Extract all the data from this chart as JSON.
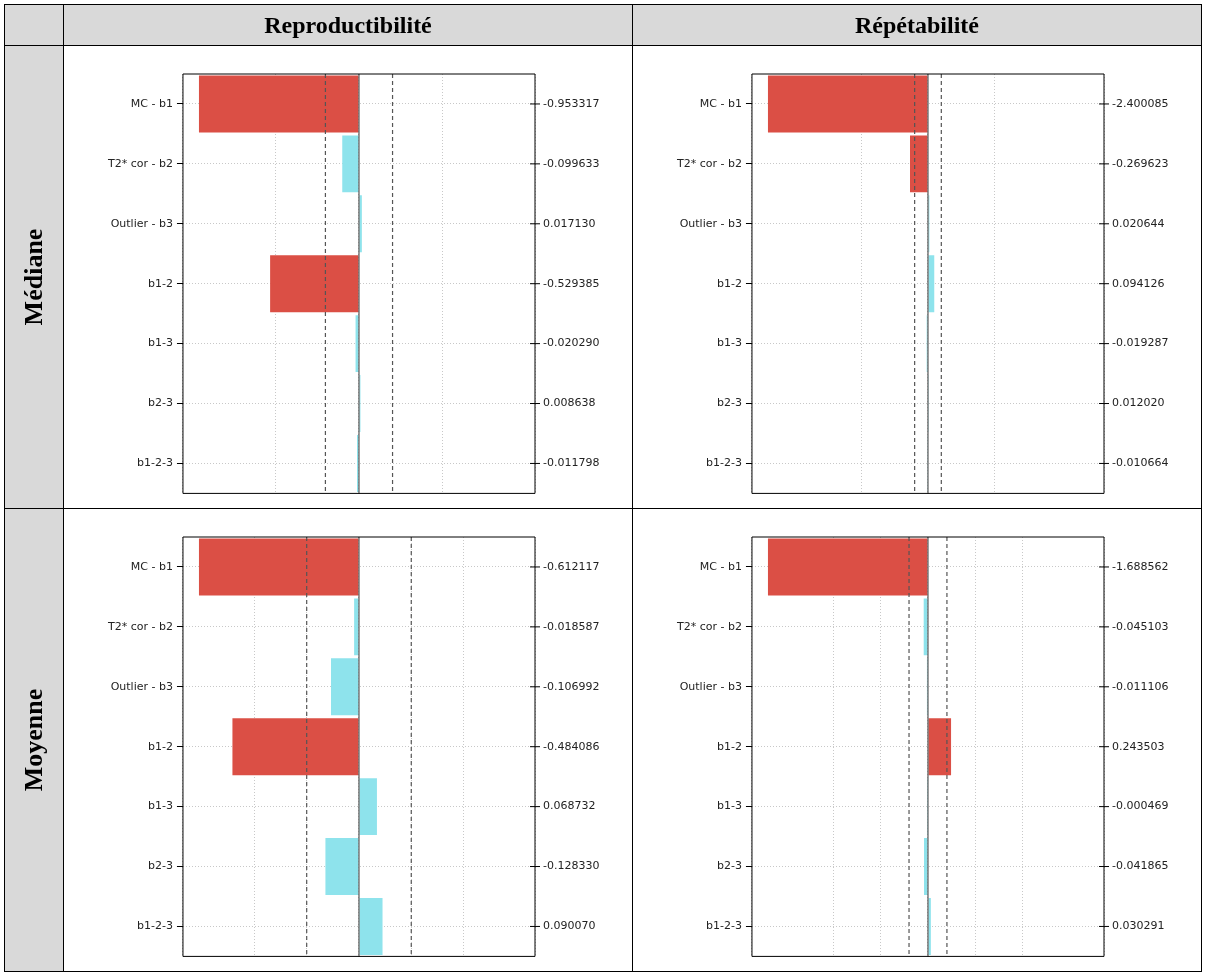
{
  "chart_data": [
    {
      "type": "bar",
      "orientation": "horizontal",
      "title": "Reproductibilité",
      "ylabel": "Médiane",
      "categories": [
        "MC - b1",
        "T2* cor - b2",
        "Outlier - b3",
        "b1-2",
        "b1-3",
        "b2-3",
        "b1-2-3"
      ],
      "values": [
        -0.953317,
        -0.099633,
        0.01713,
        -0.529385,
        -0.02029,
        0.008638,
        -0.011798
      ],
      "value_labels": [
        "-0.953317",
        "-0.099633",
        "0.017130",
        "-0.529385",
        "-0.020290",
        "0.008638",
        "-0.011798"
      ],
      "colors": [
        "#db4f45",
        "#8ee3ec",
        "#8ee3ec",
        "#db4f45",
        "#8ee3ec",
        "#8ee3ec",
        "#8ee3ec"
      ],
      "ref_lines": [
        {
          "axis": "x",
          "value": -0.2,
          "label": null,
          "line_style": "dashed",
          "color": "#555555"
        },
        {
          "axis": "x",
          "value": 0,
          "label": null,
          "line_style": "solid",
          "color": "#555555"
        },
        {
          "axis": "x",
          "value": 0.2,
          "label": null,
          "line_style": "dashed",
          "color": "#555555"
        }
      ],
      "grid": true,
      "tick_labels": "y",
      "legend": false
    },
    {
      "type": "bar",
      "orientation": "horizontal",
      "title": "Répétabilité",
      "categories": [
        "MC - b1",
        "T2* cor - b2",
        "Outlier - b3",
        "b1-2",
        "b1-3",
        "b2-3",
        "b1-2-3"
      ],
      "values": [
        -2.400085,
        -0.269623,
        0.020644,
        0.094126,
        -0.019287,
        0.01202,
        -0.010664
      ],
      "value_labels": [
        "-2.400085",
        "-0.269623",
        "0.020644",
        "0.094126",
        "-0.019287",
        "0.012020",
        "-0.010664"
      ],
      "colors": [
        "#db4f45",
        "#db4f45",
        "#8ee3ec",
        "#8ee3ec",
        "#8ee3ec",
        "#8ee3ec",
        "#8ee3ec"
      ],
      "ref_lines": [
        {
          "axis": "x",
          "value": -0.2,
          "label": null,
          "line_style": "dashed",
          "color": "#555555"
        },
        {
          "axis": "x",
          "value": 0,
          "label": null,
          "line_style": "solid",
          "color": "#555555"
        },
        {
          "axis": "x",
          "value": 0.2,
          "label": null,
          "line_style": "dashed",
          "color": "#555555"
        }
      ],
      "grid": true,
      "tick_labels": "y",
      "legend": false
    },
    {
      "type": "bar",
      "orientation": "horizontal",
      "ylabel": "Moyenne",
      "categories": [
        "MC - b1",
        "T2* cor - b2",
        "Outlier - b3",
        "b1-2",
        "b1-3",
        "b2-3",
        "b1-2-3"
      ],
      "values": [
        -0.612117,
        -0.018587,
        -0.106992,
        -0.484086,
        0.068732,
        -0.12833,
        0.09007
      ],
      "value_labels": [
        "-0.612117",
        "-0.018587",
        "-0.106992",
        "-0.484086",
        "0.068732",
        "-0.128330",
        "0.090070"
      ],
      "colors": [
        "#db4f45",
        "#8ee3ec",
        "#8ee3ec",
        "#db4f45",
        "#8ee3ec",
        "#8ee3ec",
        "#8ee3ec"
      ],
      "ref_lines": [
        {
          "axis": "x",
          "value": -0.2,
          "label": null,
          "line_style": "dashed",
          "color": "#555555"
        },
        {
          "axis": "x",
          "value": 0,
          "label": null,
          "line_style": "solid",
          "color": "#555555"
        },
        {
          "axis": "x",
          "value": 0.2,
          "label": null,
          "line_style": "dashed",
          "color": "#555555"
        }
      ],
      "grid": true,
      "tick_labels": "y",
      "legend": false
    },
    {
      "type": "bar",
      "orientation": "horizontal",
      "categories": [
        "MC - b1",
        "T2* cor - b2",
        "Outlier - b3",
        "b1-2",
        "b1-3",
        "b2-3",
        "b1-2-3"
      ],
      "values": [
        -1.688562,
        -0.045103,
        -0.011106,
        0.243503,
        -0.000469,
        -0.041865,
        0.030291
      ],
      "value_labels": [
        "-1.688562",
        "-0.045103",
        "-0.011106",
        "0.243503",
        "-0.000469",
        "-0.041865",
        "0.030291"
      ],
      "colors": [
        "#db4f45",
        "#8ee3ec",
        "#8ee3ec",
        "#db4f45",
        "#8ee3ec",
        "#8ee3ec",
        "#8ee3ec"
      ],
      "ref_lines": [
        {
          "axis": "x",
          "value": -0.2,
          "label": null,
          "line_style": "dashed",
          "color": "#555555"
        },
        {
          "axis": "x",
          "value": 0,
          "label": null,
          "line_style": "solid",
          "color": "#555555"
        },
        {
          "axis": "x",
          "value": 0.2,
          "label": null,
          "line_style": "dashed",
          "color": "#555555"
        }
      ],
      "grid": true,
      "tick_labels": "y",
      "legend": false
    }
  ]
}
